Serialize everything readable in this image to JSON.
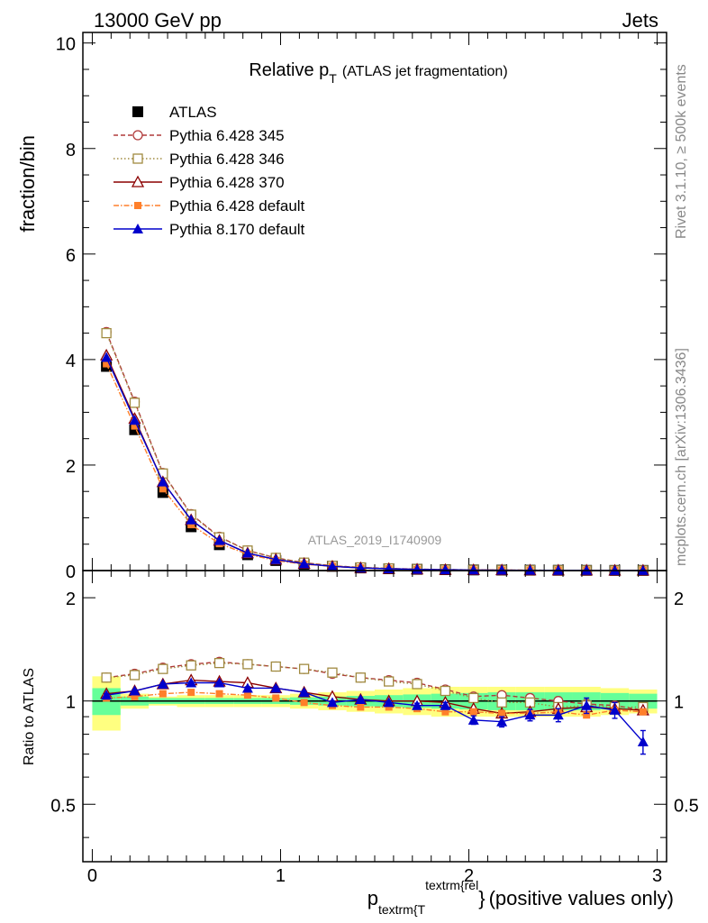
{
  "header": {
    "left": "13000 GeV pp",
    "right": "Jets"
  },
  "side_labels": {
    "rivet": "Rivet 3.1.10, ≥ 500k events",
    "mcplots": "mcplots.cern.ch [arXiv:1306.3436]"
  },
  "analysis_id": "ATLAS_2019_I1740909",
  "colors": {
    "data": "#000000",
    "p345": "#b03a3a",
    "p346": "#a08a40",
    "p370": "#8b0000",
    "p6def": "#ff7f2a",
    "p8def": "#0000cc",
    "band_inner": "#66ff99",
    "band_outer": "#ffff80"
  },
  "chart_data": [
    {
      "type": "scatter",
      "title_main": "Relative p",
      "title_sub": "T",
      "title_rest": "(ATLAS jet fragmentation)",
      "ylabel": "fraction/bin",
      "xlim": [
        -0.05,
        3.05
      ],
      "ylim": [
        0,
        10.2
      ],
      "yticks": [
        0,
        2,
        4,
        6,
        8,
        10
      ],
      "xticks": [
        0,
        1,
        2,
        3
      ],
      "x": [
        0.075,
        0.225,
        0.375,
        0.525,
        0.675,
        0.825,
        0.975,
        1.125,
        1.275,
        1.425,
        1.575,
        1.725,
        1.875,
        2.025,
        2.175,
        2.325,
        2.475,
        2.625,
        2.775,
        2.925
      ],
      "series": [
        {
          "key": "atlas",
          "name": "ATLAS",
          "marker": "square",
          "values": [
            3.87,
            2.67,
            1.48,
            0.83,
            0.49,
            0.3,
            0.19,
            0.12,
            0.08,
            0.05,
            0.035,
            0.024,
            0.017,
            0.012,
            0.009,
            0.007,
            0.005,
            0.004,
            0.003,
            0.003
          ]
        },
        {
          "key": "p345",
          "name": "Pythia 6.428 345",
          "marker": "open-circle",
          "dash": "5,3",
          "values": [
            4.52,
            3.2,
            1.85,
            1.07,
            0.64,
            0.38,
            0.24,
            0.15,
            0.09,
            0.06,
            0.04,
            0.027,
            0.019,
            0.012,
            0.009,
            0.007,
            0.005,
            0.004,
            0.003,
            0.003
          ]
        },
        {
          "key": "p346",
          "name": "Pythia 6.428 346",
          "marker": "open-square",
          "dash": "1.5,2.5",
          "values": [
            4.5,
            3.18,
            1.84,
            1.06,
            0.63,
            0.38,
            0.24,
            0.15,
            0.09,
            0.06,
            0.04,
            0.027,
            0.018,
            0.012,
            0.009,
            0.007,
            0.005,
            0.004,
            0.003,
            0.003
          ]
        },
        {
          "key": "p370",
          "name": "Pythia 6.428 370",
          "marker": "open-triangle",
          "dash": "",
          "values": [
            4.08,
            2.88,
            1.68,
            0.96,
            0.57,
            0.33,
            0.21,
            0.13,
            0.08,
            0.05,
            0.035,
            0.023,
            0.016,
            0.011,
            0.008,
            0.006,
            0.005,
            0.004,
            0.003,
            0.003
          ]
        },
        {
          "key": "p6def",
          "name": "Pythia 6.428 default",
          "marker": "filled-square-small",
          "dash": "6,2,1.5,2",
          "values": [
            3.92,
            2.74,
            1.55,
            0.87,
            0.51,
            0.31,
            0.19,
            0.12,
            0.08,
            0.05,
            0.033,
            0.022,
            0.015,
            0.011,
            0.008,
            0.006,
            0.005,
            0.004,
            0.003,
            0.003
          ]
        },
        {
          "key": "p8def",
          "name": "Pythia 8.170 default",
          "marker": "filled-triangle",
          "dash": "",
          "values": [
            4.04,
            2.85,
            1.68,
            0.96,
            0.57,
            0.33,
            0.21,
            0.13,
            0.08,
            0.05,
            0.034,
            0.023,
            0.016,
            0.01,
            0.008,
            0.006,
            0.005,
            0.004,
            0.003,
            0.002
          ]
        }
      ]
    },
    {
      "type": "scatter",
      "ylabel": "Ratio to ATLAS",
      "xlabel_main": "p",
      "xlabel_sub": "textrm{T",
      "xlabel_sup": "textrm{rel",
      "xlabel_close": "}",
      "xlabel_rest": "(positive values only)",
      "xlim": [
        -0.05,
        3.05
      ],
      "ylim": [
        0.34,
        2.4
      ],
      "yticks": [
        0.5,
        1,
        2
      ],
      "xticks": [
        0,
        1,
        2,
        3
      ],
      "x": [
        0.075,
        0.225,
        0.375,
        0.525,
        0.675,
        0.825,
        0.975,
        1.125,
        1.275,
        1.425,
        1.575,
        1.725,
        1.875,
        2.025,
        2.175,
        2.325,
        2.475,
        2.625,
        2.775,
        2.925
      ],
      "bins": [
        [
          0,
          0.15
        ],
        [
          0.15,
          0.3
        ],
        [
          0.3,
          0.45
        ],
        [
          0.45,
          0.6
        ],
        [
          0.6,
          0.75
        ],
        [
          0.75,
          0.9
        ],
        [
          0.9,
          1.05
        ],
        [
          1.05,
          1.2
        ],
        [
          1.2,
          1.35
        ],
        [
          1.35,
          1.5
        ],
        [
          1.5,
          1.65
        ],
        [
          1.65,
          1.8
        ],
        [
          1.8,
          1.95
        ],
        [
          1.95,
          2.1
        ],
        [
          2.1,
          2.25
        ],
        [
          2.25,
          2.4
        ],
        [
          2.4,
          2.55
        ],
        [
          2.55,
          2.7
        ],
        [
          2.7,
          2.85
        ],
        [
          2.85,
          3.0
        ]
      ],
      "band_inner": [
        [
          0.91,
          1.09
        ],
        [
          0.97,
          1.03
        ],
        [
          0.98,
          1.02
        ],
        [
          0.98,
          1.02
        ],
        [
          0.98,
          1.02
        ],
        [
          0.98,
          1.02
        ],
        [
          0.98,
          1.02
        ],
        [
          0.975,
          1.025
        ],
        [
          0.97,
          1.03
        ],
        [
          0.965,
          1.035
        ],
        [
          0.96,
          1.04
        ],
        [
          0.955,
          1.045
        ],
        [
          0.95,
          1.05
        ],
        [
          0.945,
          1.055
        ],
        [
          0.94,
          1.06
        ],
        [
          0.94,
          1.06
        ],
        [
          0.94,
          1.06
        ],
        [
          0.94,
          1.06
        ],
        [
          0.945,
          1.055
        ],
        [
          0.95,
          1.05
        ]
      ],
      "band_outer": [
        [
          0.82,
          1.18
        ],
        [
          0.95,
          1.05
        ],
        [
          0.97,
          1.03
        ],
        [
          0.96,
          1.04
        ],
        [
          0.96,
          1.04
        ],
        [
          0.96,
          1.04
        ],
        [
          0.96,
          1.04
        ],
        [
          0.95,
          1.05
        ],
        [
          0.94,
          1.06
        ],
        [
          0.93,
          1.07
        ],
        [
          0.92,
          1.08
        ],
        [
          0.91,
          1.09
        ],
        [
          0.9,
          1.1
        ],
        [
          0.9,
          1.1
        ],
        [
          0.9,
          1.1
        ],
        [
          0.9,
          1.1
        ],
        [
          0.9,
          1.1
        ],
        [
          0.9,
          1.1
        ],
        [
          0.91,
          1.09
        ],
        [
          0.92,
          1.08
        ]
      ],
      "series": [
        {
          "key": "p345",
          "values": [
            1.17,
            1.2,
            1.25,
            1.28,
            1.3,
            1.28,
            1.26,
            1.24,
            1.2,
            1.17,
            1.15,
            1.13,
            1.08,
            1.03,
            1.04,
            1.02,
            1.0,
            0.98,
            0.97,
            0.94
          ]
        },
        {
          "key": "p346",
          "values": [
            1.17,
            1.19,
            1.24,
            1.27,
            1.29,
            1.28,
            1.26,
            1.24,
            1.21,
            1.17,
            1.14,
            1.12,
            1.07,
            1.02,
            0.99,
            0.99,
            0.96,
            0.97,
            0.96,
            0.96
          ]
        },
        {
          "key": "p370",
          "values": [
            1.05,
            1.07,
            1.12,
            1.15,
            1.14,
            1.13,
            1.09,
            1.06,
            1.03,
            1.01,
            1.0,
            1.0,
            0.99,
            0.95,
            0.92,
            0.93,
            0.95,
            0.96,
            0.95,
            0.94
          ]
        },
        {
          "key": "p6def",
          "values": [
            1.02,
            1.03,
            1.05,
            1.06,
            1.05,
            1.04,
            1.02,
            0.99,
            0.97,
            0.96,
            0.96,
            0.95,
            0.93,
            0.93,
            0.92,
            0.92,
            0.93,
            0.91,
            0.94,
            0.93
          ]
        },
        {
          "key": "p8def",
          "values": [
            1.04,
            1.07,
            1.12,
            1.13,
            1.13,
            1.09,
            1.09,
            1.06,
            0.99,
            1.01,
            0.99,
            0.97,
            0.97,
            0.88,
            0.87,
            0.91,
            0.91,
            0.97,
            0.94,
            0.76
          ],
          "errors": [
            0.01,
            0.01,
            0.01,
            0.01,
            0.01,
            0.01,
            0.01,
            0.01,
            0.01,
            0.01,
            0.01,
            0.015,
            0.02,
            0.025,
            0.03,
            0.035,
            0.04,
            0.05,
            0.05,
            0.06
          ]
        }
      ]
    }
  ]
}
